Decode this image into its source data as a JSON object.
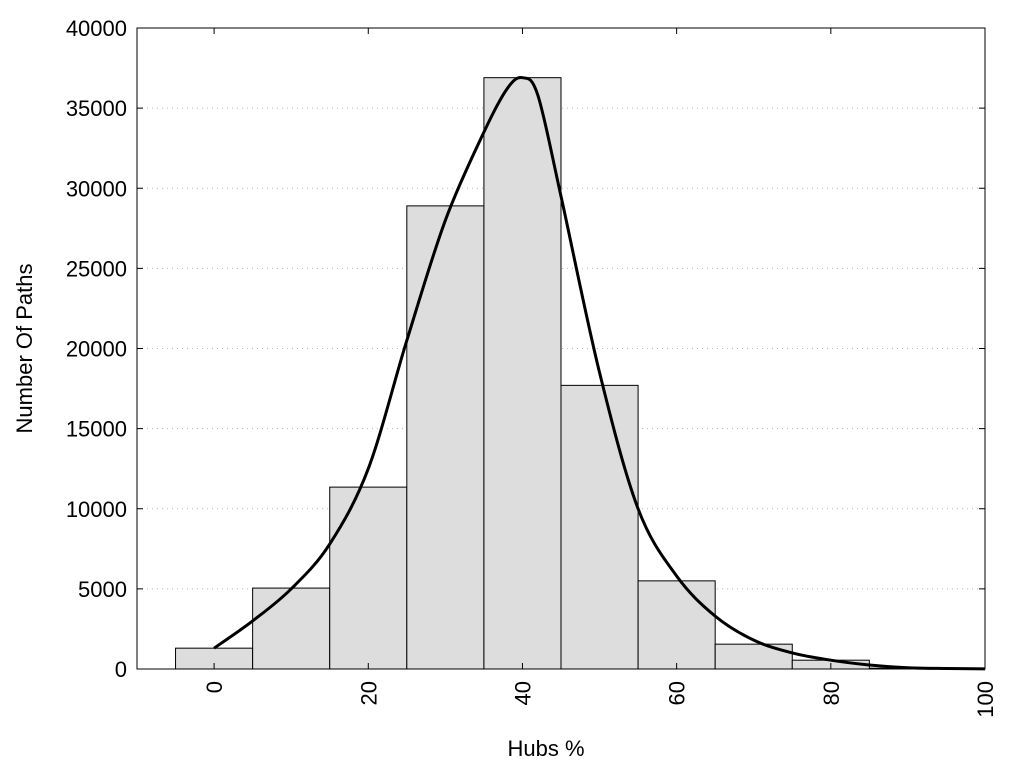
{
  "chart_data": {
    "type": "bar",
    "xlabel": "Hubs %",
    "ylabel": "Number Of Paths",
    "xlim": [
      -10,
      100
    ],
    "ylim": [
      0,
      40000
    ],
    "x_ticks": [
      0,
      20,
      40,
      60,
      80,
      100
    ],
    "y_ticks": [
      0,
      5000,
      10000,
      15000,
      20000,
      25000,
      30000,
      35000,
      40000
    ],
    "grid": "horizontal-dotted",
    "bar_width": 10,
    "bar_centers": [
      0,
      10,
      20,
      30,
      40,
      50,
      60,
      70,
      80,
      90
    ],
    "values": [
      1300,
      5050,
      11350,
      28900,
      36900,
      17700,
      5500,
      1550,
      550,
      50
    ],
    "bar_color": "#dddddd",
    "curve": {
      "x": [
        0,
        5,
        10,
        15,
        20,
        25,
        30,
        35,
        38,
        40,
        42,
        45,
        50,
        55,
        60,
        65,
        70,
        75,
        80,
        85,
        90,
        95,
        100
      ],
      "y": [
        1300,
        3000,
        5000,
        7800,
        12500,
        20500,
        28000,
        33500,
        36200,
        36900,
        35800,
        29500,
        18500,
        10000,
        5800,
        3300,
        1800,
        1000,
        550,
        250,
        80,
        30,
        10
      ]
    }
  }
}
